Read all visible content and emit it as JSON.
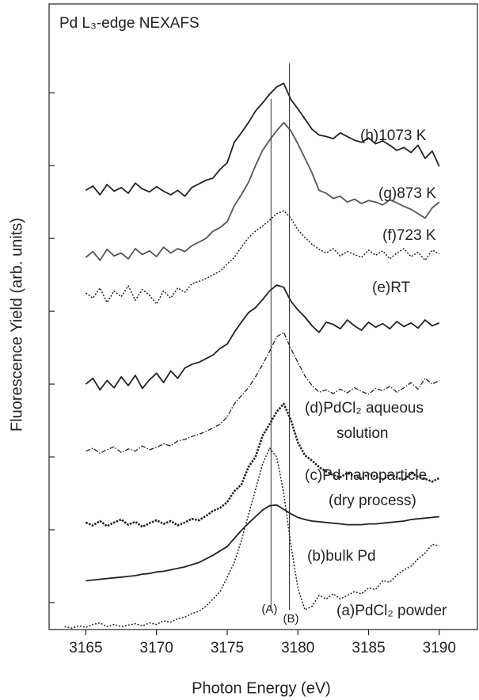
{
  "chart_data": {
    "type": "line",
    "title": "Pd L₃-edge NEXAFS",
    "x_label": "Photon Energy (eV)",
    "y_label": "Fluorescence Yield (arb. units)",
    "x": [
      3163.5,
      3164,
      3164.5,
      3165,
      3165.5,
      3166,
      3166.5,
      3167,
      3167.5,
      3168,
      3168.5,
      3169,
      3169.5,
      3170,
      3170.5,
      3171,
      3171.5,
      3172,
      3172.5,
      3173,
      3173.5,
      3174,
      3174.5,
      3175,
      3175.5,
      3176,
      3176.5,
      3177,
      3177.5,
      3178,
      3178.5,
      3179,
      3179.5,
      3180,
      3180.5,
      3181,
      3181.5,
      3182,
      3182.5,
      3183,
      3183.5,
      3184,
      3184.5,
      3185,
      3185.5,
      3186,
      3186.5,
      3187,
      3187.5,
      3188,
      3188.5,
      3189,
      3189.5,
      3190
    ],
    "xlim": [
      3162.4,
      3192.7
    ],
    "xticks": [
      3165,
      3170,
      3175,
      3180,
      3185,
      3190
    ],
    "ylim": [
      -0.37,
      8.22
    ],
    "yticks": [
      0,
      1,
      2,
      3,
      4,
      5,
      6,
      7
    ],
    "series": [
      {
        "name": "(a)PdCl₂ powder",
        "color": "#222222",
        "style": "dotted",
        "values": [
          -0.33,
          -0.35,
          -0.32,
          -0.34,
          -0.3,
          -0.28,
          -0.33,
          -0.3,
          -0.33,
          -0.31,
          -0.29,
          -0.32,
          -0.28,
          -0.3,
          -0.25,
          -0.27,
          -0.22,
          -0.2,
          -0.15,
          -0.12,
          -0.05,
          0.05,
          0.15,
          0.35,
          0.55,
          0.85,
          1.2,
          1.55,
          1.9,
          2.12,
          2.0,
          1.5,
          0.8,
          0.2,
          -0.1,
          -0.05,
          0.1,
          0.05,
          0.12,
          0.05,
          0.1,
          0.15,
          0.12,
          0.2,
          0.18,
          0.3,
          0.28,
          0.38,
          0.45,
          0.5,
          0.6,
          0.68,
          0.8,
          0.78
        ]
      },
      {
        "name": "(b)bulk Pd",
        "color": "#222222",
        "style": "solid",
        "values": [
          null,
          null,
          null,
          0.3,
          0.31,
          0.32,
          0.33,
          0.34,
          0.35,
          0.36,
          0.37,
          0.39,
          0.4,
          0.42,
          0.43,
          0.45,
          0.47,
          0.49,
          0.52,
          0.55,
          0.6,
          0.65,
          0.71,
          0.77,
          0.88,
          0.99,
          1.09,
          1.18,
          1.27,
          1.33,
          1.34,
          1.28,
          1.22,
          1.17,
          1.14,
          1.12,
          1.11,
          1.1,
          1.09,
          1.08,
          1.07,
          1.07,
          1.07,
          1.08,
          1.08,
          1.09,
          1.1,
          1.11,
          1.12,
          1.14,
          1.15,
          1.16,
          1.17,
          1.18
        ]
      },
      {
        "name": "(c)Pd nanoparticle\n(dry process)",
        "color": "#222222",
        "style": "bold-dotted",
        "values": [
          null,
          null,
          null,
          1.1,
          1.06,
          1.12,
          1.05,
          1.1,
          1.14,
          1.07,
          1.11,
          1.04,
          1.09,
          1.13,
          1.08,
          1.12,
          1.06,
          1.1,
          1.15,
          1.13,
          1.19,
          1.26,
          1.3,
          1.38,
          1.53,
          1.62,
          1.86,
          2.0,
          2.29,
          2.45,
          2.62,
          2.73,
          2.51,
          2.2,
          2.02,
          1.95,
          1.86,
          1.8,
          1.75,
          1.72,
          1.78,
          1.74,
          1.7,
          1.77,
          1.73,
          1.69,
          1.76,
          1.72,
          1.68,
          1.78,
          1.73,
          1.7,
          1.66,
          1.71
        ]
      },
      {
        "name": "(d)PdCl₂ aqueous\nsolution",
        "color": "#222222",
        "style": "dashdot",
        "values": [
          null,
          null,
          null,
          2.08,
          2.12,
          2.05,
          2.1,
          2.14,
          2.06,
          2.11,
          2.08,
          2.15,
          2.1,
          2.13,
          2.18,
          2.15,
          2.22,
          2.24,
          2.28,
          2.31,
          2.35,
          2.4,
          2.45,
          2.55,
          2.73,
          2.84,
          2.95,
          3.1,
          3.27,
          3.45,
          3.65,
          3.71,
          3.49,
          3.3,
          3.11,
          2.98,
          2.89,
          2.92,
          2.87,
          2.93,
          2.88,
          2.95,
          2.9,
          2.86,
          2.94,
          2.91,
          2.97,
          2.89,
          2.95,
          3.02,
          2.93,
          3.08,
          3.0,
          3.05
        ]
      },
      {
        "name": "(e)RT",
        "color": "#222222",
        "style": "solid",
        "values": [
          null,
          null,
          null,
          3.0,
          3.08,
          2.92,
          3.05,
          2.95,
          3.1,
          2.98,
          3.12,
          2.94,
          3.06,
          3.15,
          3.02,
          3.18,
          3.08,
          3.22,
          3.27,
          3.3,
          3.35,
          3.4,
          3.49,
          3.55,
          3.71,
          3.85,
          3.98,
          4.05,
          4.16,
          4.28,
          4.36,
          4.33,
          4.14,
          4.02,
          3.92,
          3.8,
          3.71,
          3.85,
          3.82,
          3.76,
          3.88,
          3.8,
          3.74,
          3.85,
          3.78,
          3.83,
          3.76,
          3.86,
          3.79,
          3.84,
          3.77,
          3.88,
          3.8,
          3.84
        ]
      },
      {
        "name": "(f)723 K",
        "color": "#222222",
        "style": "dotted",
        "values": [
          null,
          null,
          null,
          4.25,
          4.18,
          4.32,
          4.12,
          4.28,
          4.2,
          4.35,
          4.15,
          4.3,
          4.22,
          4.1,
          4.28,
          4.18,
          4.32,
          4.26,
          4.38,
          4.41,
          4.45,
          4.5,
          4.55,
          4.65,
          4.74,
          4.88,
          5.01,
          5.1,
          5.17,
          5.25,
          5.34,
          5.38,
          5.28,
          5.12,
          5.01,
          4.92,
          4.85,
          4.8,
          4.86,
          4.76,
          4.82,
          4.78,
          4.74,
          4.84,
          4.77,
          4.83,
          4.72,
          4.8,
          4.86,
          4.75,
          4.81,
          4.7,
          4.84,
          4.79
        ]
      },
      {
        "name": "(g)873 K",
        "color": "#555555",
        "style": "solid",
        "values": [
          null,
          null,
          null,
          4.74,
          4.82,
          4.7,
          4.85,
          4.76,
          4.8,
          4.72,
          4.86,
          4.78,
          4.83,
          4.75,
          4.88,
          4.8,
          4.86,
          4.82,
          4.9,
          4.95,
          5.0,
          5.1,
          5.15,
          5.23,
          5.45,
          5.6,
          5.77,
          6.0,
          6.21,
          6.35,
          6.48,
          6.59,
          6.48,
          6.3,
          6.1,
          5.9,
          5.66,
          5.62,
          5.55,
          5.58,
          5.5,
          5.54,
          5.48,
          5.52,
          5.5,
          5.46,
          5.53,
          5.49,
          5.44,
          5.4,
          5.34,
          5.28,
          5.42,
          5.5
        ]
      },
      {
        "name": "(h)1073 K",
        "color": "#222222",
        "style": "solid",
        "values": [
          null,
          null,
          null,
          5.66,
          5.72,
          5.6,
          5.74,
          5.65,
          5.7,
          5.62,
          5.76,
          5.68,
          5.64,
          5.71,
          5.65,
          5.6,
          5.66,
          5.58,
          5.7,
          5.75,
          5.8,
          5.83,
          5.95,
          6.04,
          6.32,
          6.45,
          6.59,
          6.75,
          6.86,
          6.98,
          7.08,
          7.13,
          6.91,
          6.78,
          6.64,
          6.5,
          6.42,
          6.4,
          6.37,
          6.45,
          6.4,
          6.35,
          6.32,
          6.38,
          6.3,
          6.34,
          6.28,
          6.21,
          6.25,
          6.18,
          6.28,
          6.1,
          6.2,
          5.99
        ]
      }
    ],
    "reference_lines": [
      {
        "x": 3178.1,
        "label": "(A)"
      },
      {
        "x": 3179.4,
        "label": "(B)"
      }
    ]
  }
}
